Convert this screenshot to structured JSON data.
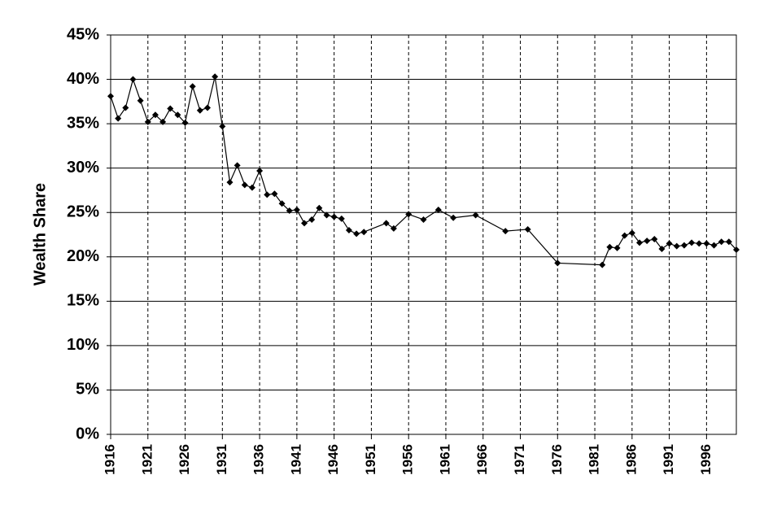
{
  "chart_data": {
    "type": "line",
    "y_label": "Wealth Share",
    "x": [
      1916,
      1917,
      1918,
      1919,
      1920,
      1921,
      1922,
      1923,
      1924,
      1925,
      1926,
      1927,
      1928,
      1929,
      1930,
      1931,
      1932,
      1933,
      1934,
      1935,
      1936,
      1937,
      1938,
      1939,
      1940,
      1941,
      1942,
      1943,
      1944,
      1945,
      1946,
      1947,
      1948,
      1949,
      1950,
      1953,
      1954,
      1956,
      1958,
      1960,
      1962,
      1965,
      1969,
      1972,
      1976,
      1982,
      1983,
      1984,
      1985,
      1986,
      1987,
      1988,
      1989,
      1990,
      1991,
      1992,
      1993,
      1994,
      1995,
      1996,
      1997,
      1998,
      1999,
      2000
    ],
    "values": [
      38.1,
      35.6,
      36.8,
      40.0,
      37.6,
      35.2,
      36.0,
      35.2,
      36.7,
      36.0,
      35.1,
      39.2,
      36.5,
      36.8,
      40.3,
      34.7,
      28.4,
      30.3,
      28.1,
      27.8,
      29.7,
      27.0,
      27.1,
      26.0,
      25.2,
      25.3,
      23.8,
      24.2,
      25.5,
      24.7,
      24.5,
      24.3,
      23.0,
      22.6,
      22.8,
      23.8,
      23.2,
      24.8,
      24.2,
      25.3,
      24.4,
      24.7,
      22.9,
      23.1,
      19.3,
      19.1,
      21.1,
      21.0,
      22.4,
      22.7,
      21.6,
      21.8,
      22.0,
      20.9,
      21.5,
      21.2,
      21.3,
      21.6,
      21.5,
      21.5,
      21.3,
      21.7,
      21.7,
      20.8
    ],
    "color": "#000000",
    "xlim": [
      1916,
      2000
    ],
    "xticks": [
      1916,
      1921,
      1926,
      1931,
      1936,
      1941,
      1946,
      1951,
      1956,
      1961,
      1966,
      1971,
      1976,
      1981,
      1986,
      1991,
      1996
    ],
    "ylim": [
      0,
      45
    ],
    "yticks": [
      {
        "value": 0,
        "label": "0%"
      },
      {
        "value": 5,
        "label": "5%"
      },
      {
        "value": 10,
        "label": "10%"
      },
      {
        "value": 15,
        "label": "15%"
      },
      {
        "value": 20,
        "label": "20%"
      },
      {
        "value": 25,
        "label": "25%"
      },
      {
        "value": 30,
        "label": "30%"
      },
      {
        "value": 35,
        "label": "35%"
      },
      {
        "value": 40,
        "label": "40%"
      },
      {
        "value": 45,
        "label": "45%"
      }
    ],
    "grid": true
  }
}
